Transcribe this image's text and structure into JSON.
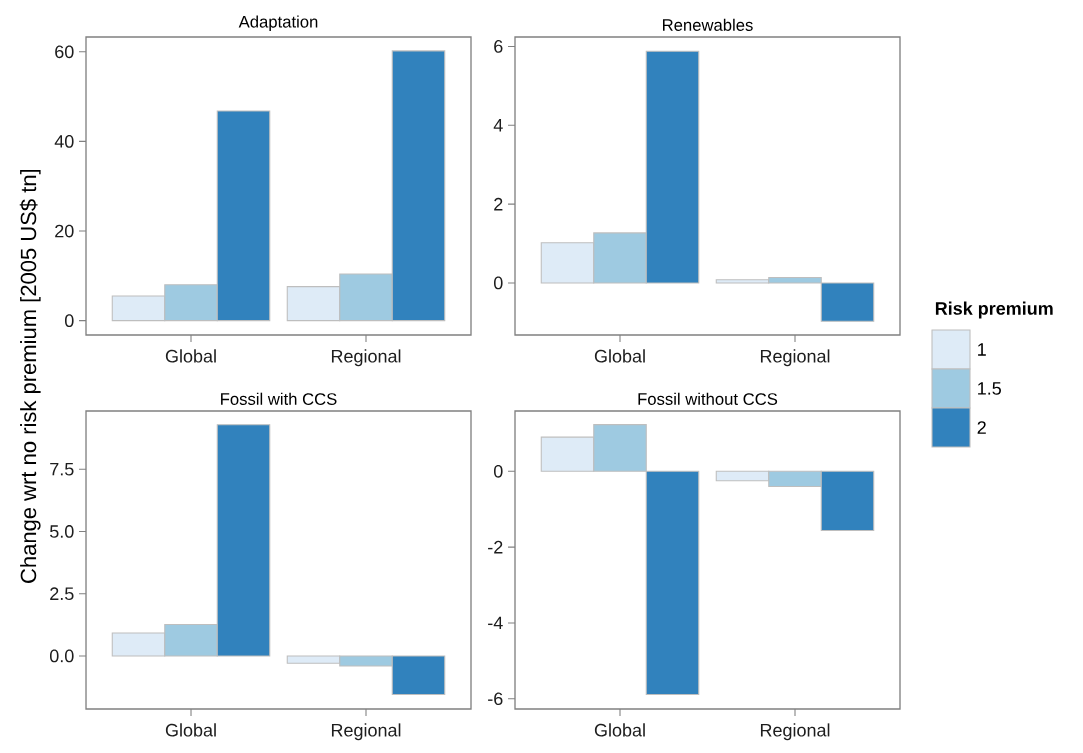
{
  "chart_data": [
    {
      "type": "bar",
      "title": "Adaptation",
      "ylabel": "Change wrt no risk premium [2005 US$ tn]",
      "categories": [
        "Global",
        "Regional"
      ],
      "ylim": [
        -3.2,
        63.3
      ],
      "yticks": [
        0,
        20,
        40,
        60
      ],
      "series": [
        {
          "color": "#deebf7",
          "values": [
            5.5,
            7.6
          ]
        },
        {
          "color": "#9ecae1",
          "values": [
            8.0,
            10.4
          ]
        },
        {
          "color": "#3182bd",
          "values": [
            46.8,
            60.2
          ]
        }
      ]
    },
    {
      "type": "bar",
      "title": "Renewables",
      "legend": "right",
      "legend_title": "Risk premium",
      "categories": [
        "Global",
        "Regional"
      ],
      "ylim": [
        -1.32,
        6.24
      ],
      "yticks": [
        0,
        2,
        4,
        6
      ],
      "series": [
        {
          "name": "1",
          "color": "#deebf7",
          "values": [
            1.02,
            0.08
          ]
        },
        {
          "name": "1.5",
          "color": "#9ecae1",
          "values": [
            1.27,
            0.14
          ]
        },
        {
          "name": "2",
          "color": "#3182bd",
          "values": [
            5.88,
            -0.97
          ]
        }
      ]
    },
    {
      "type": "bar",
      "title": "Fossil with CCS",
      "categories": [
        "Global",
        "Regional"
      ],
      "ylim": [
        -2.13,
        9.84
      ],
      "yticks": [
        {
          "value": 0,
          "label": "0.0"
        },
        {
          "value": 2.5,
          "label": "2.5"
        },
        {
          "value": 5,
          "label": "5.0"
        },
        {
          "value": 7.5,
          "label": "7.5"
        }
      ],
      "series": [
        {
          "color": "#deebf7",
          "values": [
            0.92,
            -0.29
          ]
        },
        {
          "color": "#9ecae1",
          "values": [
            1.26,
            -0.4
          ]
        },
        {
          "color": "#3182bd",
          "values": [
            9.29,
            -1.55
          ]
        }
      ]
    },
    {
      "type": "bar",
      "title": "Fossil without CCS",
      "categories": [
        "Global",
        "Regional"
      ],
      "ylim": [
        -6.27,
        1.59
      ],
      "yticks": [
        -6,
        -4,
        -2,
        0
      ],
      "series": [
        {
          "color": "#deebf7",
          "values": [
            0.9,
            -0.25
          ]
        },
        {
          "color": "#9ecae1",
          "values": [
            1.23,
            -0.4
          ]
        },
        {
          "color": "#3182bd",
          "values": [
            -5.89,
            -1.56
          ]
        }
      ]
    }
  ]
}
